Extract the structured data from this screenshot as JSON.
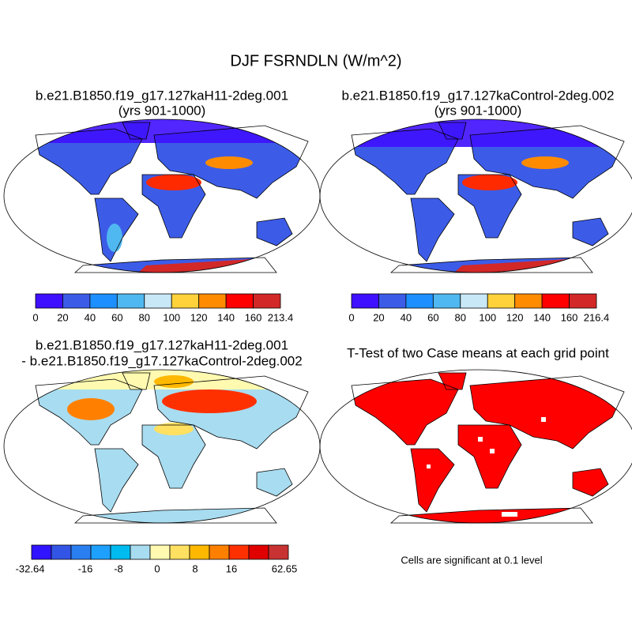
{
  "title": "DJF FSRNDLN (W/m^2)",
  "panels": [
    {
      "title": "b.e21.B1850.f19_g17.127kaH11-2deg.001",
      "subtitle": "(yrs 901-1000)",
      "colorbar": {
        "colors": [
          "#3f0fff",
          "#3c5ce8",
          "#1e8fff",
          "#50b8f0",
          "#c8e8f8",
          "#ffd23c",
          "#ff8c00",
          "#ff0000",
          "#d22828"
        ],
        "labels": [
          "0",
          "20",
          "40",
          "60",
          "80",
          "100",
          "120",
          "140",
          "160",
          "213.4"
        ]
      }
    },
    {
      "title": "b.e21.B1850.f19_g17.127kaControl-2deg.002",
      "subtitle": "(yrs 901-1000)",
      "colorbar": {
        "colors": [
          "#3f0fff",
          "#3c5ce8",
          "#1e8fff",
          "#50b8f0",
          "#c8e8f8",
          "#ffd23c",
          "#ff8c00",
          "#ff0000",
          "#d22828"
        ],
        "labels": [
          "0",
          "20",
          "40",
          "60",
          "80",
          "100",
          "120",
          "140",
          "160",
          "216.4"
        ]
      }
    },
    {
      "title": "b.e21.B1850.f19_g17.127kaH11-2deg.001",
      "subtitle": "- b.e21.B1850.f19_g17.127kaControl-2deg.002",
      "colorbar": {
        "colors": [
          "#3014ff",
          "#3355e6",
          "#2a7ff0",
          "#1ea0ff",
          "#00bbf0",
          "#a8dcf0",
          "#fffab0",
          "#ffe060",
          "#ffb800",
          "#ff8000",
          "#ff3000",
          "#e00000",
          "#c83232"
        ],
        "labels": [
          "-32.64",
          "-16",
          "-8",
          "0",
          "8",
          "16",
          "62.65"
        ]
      }
    },
    {
      "title": "T-Test of two Case means at each grid point",
      "note": "Cells are significant at 0.1 level"
    }
  ]
}
